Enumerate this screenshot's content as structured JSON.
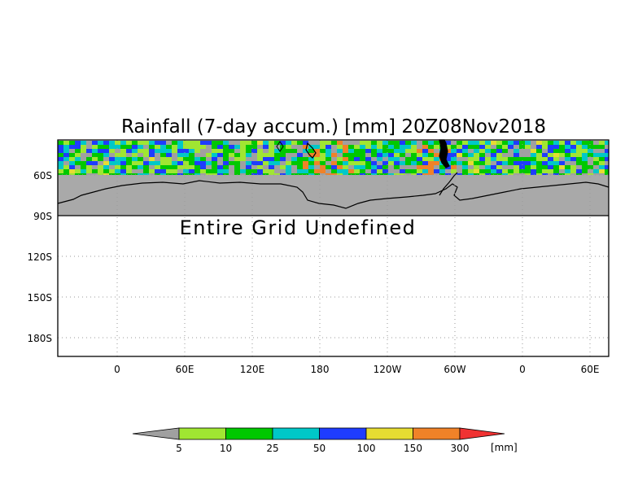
{
  "title": "Rainfall (7-day accum.) [mm] 20Z08Nov2018",
  "notice": "Entire Grid Undefined",
  "lat_labels": [
    "60S",
    "90S",
    "120S",
    "150S",
    "180S"
  ],
  "lon_labels": [
    "0",
    "60E",
    "120E",
    "180",
    "120W",
    "60W",
    "0",
    "60E"
  ],
  "colorbar": {
    "unit": "[mm]",
    "thresholds": [
      "5",
      "10",
      "25",
      "50",
      "100",
      "150",
      "300"
    ],
    "colors": [
      "#a0a0a0",
      "#a0e632",
      "#00c800",
      "#00c8c8",
      "#1e3cff",
      "#e6dc32",
      "#f08228",
      "#f03232"
    ]
  },
  "colors": {
    "land_undefined": "#a9a9a9",
    "coastline": "#000000",
    "grid": "#9a9a9a"
  }
}
